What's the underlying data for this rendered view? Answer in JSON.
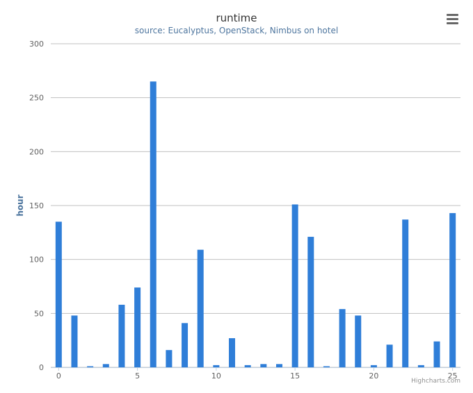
{
  "chart_data": {
    "type": "bar",
    "title": "runtime",
    "subtitle": "source: Eucalyptus, OpenStack, Nimbus on hotel",
    "xlabel": "",
    "ylabel": "hour",
    "x": [
      0,
      1,
      2,
      3,
      4,
      5,
      6,
      7,
      8,
      9,
      10,
      11,
      12,
      13,
      14,
      15,
      16,
      17,
      18,
      19,
      20,
      21,
      22,
      23,
      24,
      25
    ],
    "values": [
      135,
      48,
      1,
      3,
      58,
      74,
      265,
      16,
      41,
      109,
      2,
      27,
      2,
      3,
      3,
      151,
      121,
      1,
      54,
      48,
      2,
      21,
      137,
      2,
      24,
      143
    ],
    "ylim": [
      0,
      300
    ],
    "yticks": [
      "0",
      "50",
      "100",
      "150",
      "200",
      "250",
      "300"
    ],
    "xticks": [
      "0",
      "5",
      "10",
      "15",
      "20",
      "25"
    ],
    "grid": true,
    "bar_color": "#2f7ed8"
  },
  "ui": {
    "menu_icon": "hamburger-menu-icon",
    "credits": "Highcharts.com"
  }
}
